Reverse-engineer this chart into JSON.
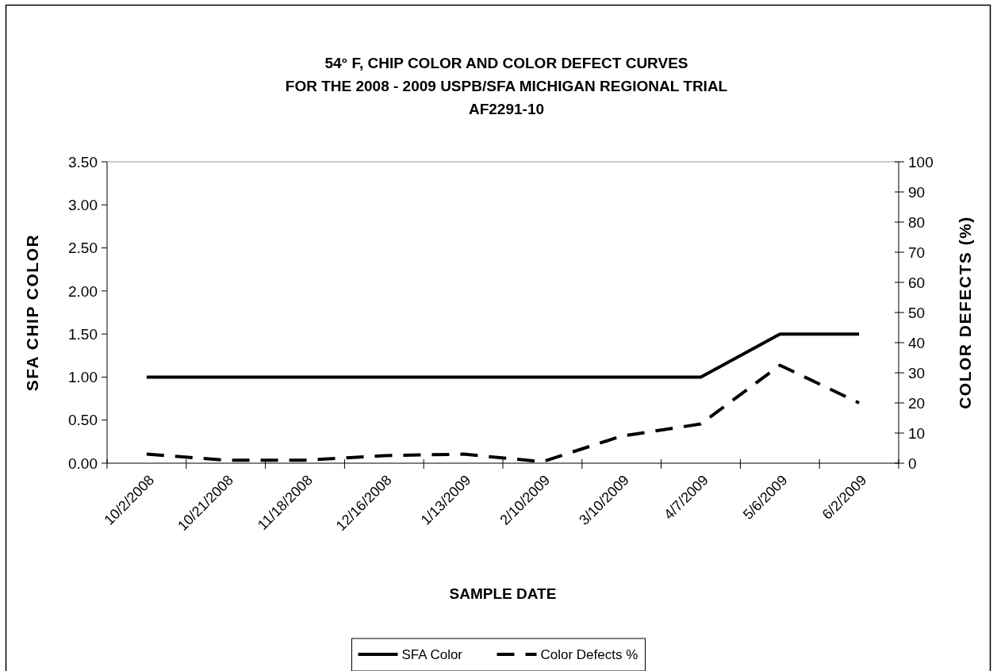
{
  "chart_data": {
    "type": "line",
    "title": "54° F, CHIP COLOR AND COLOR DEFECT CURVES\nFOR THE 2008 - 2009 USPB/SFA MICHIGAN REGIONAL TRIAL\nAF2291-10",
    "xlabel": "SAMPLE DATE",
    "ylabel": "SFA CHIP COLOR",
    "y2label": "COLOR DEFECTS (%)",
    "categories": [
      "10/2/2008",
      "10/21/2008",
      "11/18/2008",
      "12/16/2008",
      "1/13/2009",
      "2/10/2009",
      "3/10/2009",
      "4/7/2009",
      "5/6/2009",
      "6/2/2009"
    ],
    "series": [
      {
        "name": "SFA Color",
        "color": "#000000",
        "line_style": "solid",
        "values": [
          1,
          1,
          1,
          1,
          1,
          1,
          1,
          1,
          1.5,
          1.5
        ]
      },
      {
        "name": "Color Defects %",
        "color": "#000000",
        "line_style": "dashed",
        "axis": "y2",
        "values": [
          3,
          1,
          1,
          2.5,
          3,
          0.5,
          9,
          13,
          32.5,
          20
        ]
      }
    ],
    "ylim": [
      0,
      3.5
    ],
    "yticks": [
      {
        "value": 0,
        "label": "0.00"
      },
      {
        "value": 0.5,
        "label": "0.50"
      },
      {
        "value": 1,
        "label": "1.00"
      },
      {
        "value": 1.5,
        "label": "1.50"
      },
      {
        "value": 2,
        "label": "2.00"
      },
      {
        "value": 2.5,
        "label": "2.50"
      },
      {
        "value": 3,
        "label": "3.00"
      },
      {
        "value": 3.5,
        "label": "3.50"
      }
    ],
    "y2lim": [
      0,
      100
    ],
    "y2ticks": [
      0,
      10,
      20,
      30,
      40,
      50,
      60,
      70,
      80,
      90,
      100
    ],
    "grid": false,
    "legend": "bottom",
    "marker": "none"
  }
}
